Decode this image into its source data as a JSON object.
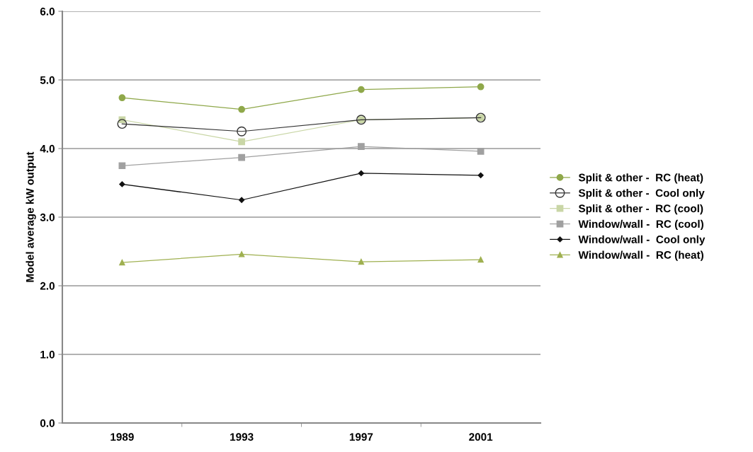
{
  "chart_data": {
    "type": "line",
    "ylabel": "Model average kW output",
    "categories": [
      "1989",
      "1993",
      "1997",
      "2001"
    ],
    "series": [
      {
        "name": "Split & other -  RC (heat)",
        "color": "#8fa84a",
        "marker": "circle",
        "values": [
          4.74,
          4.57,
          4.86,
          4.9
        ]
      },
      {
        "name": "Split & other -  Cool only",
        "color": "#333333",
        "marker": "circle",
        "values": [
          4.36,
          4.25,
          4.42,
          4.45
        ]
      },
      {
        "name": "Split & other -  RC (cool)",
        "color": "#c9d6a6",
        "marker": "square",
        "values": [
          4.42,
          4.1,
          4.42,
          4.45
        ]
      },
      {
        "name": "Window/wall -  RC (cool)",
        "color": "#a0a0a0",
        "marker": "square",
        "values": [
          3.75,
          3.87,
          4.03,
          3.96
        ]
      },
      {
        "name": "Window/wall -  Cool only",
        "color": "#111111",
        "marker": "diamond",
        "values": [
          3.48,
          3.25,
          3.64,
          3.61
        ]
      },
      {
        "name": "Window/wall -  RC (heat)",
        "color": "#9fb050",
        "marker": "triangle",
        "values": [
          2.34,
          2.46,
          2.35,
          2.38
        ]
      }
    ],
    "ylim": [
      0,
      6
    ],
    "yticks": [
      {
        "value": 0,
        "label": "0.0"
      },
      {
        "value": 1,
        "label": "1.0"
      },
      {
        "value": 2,
        "label": "2.0"
      },
      {
        "value": 3,
        "label": "3.0"
      },
      {
        "value": 4,
        "label": "4.0"
      },
      {
        "value": 5,
        "label": "5.0"
      },
      {
        "value": 6,
        "label": "6.0"
      }
    ],
    "grid": "y",
    "legend": "right"
  }
}
